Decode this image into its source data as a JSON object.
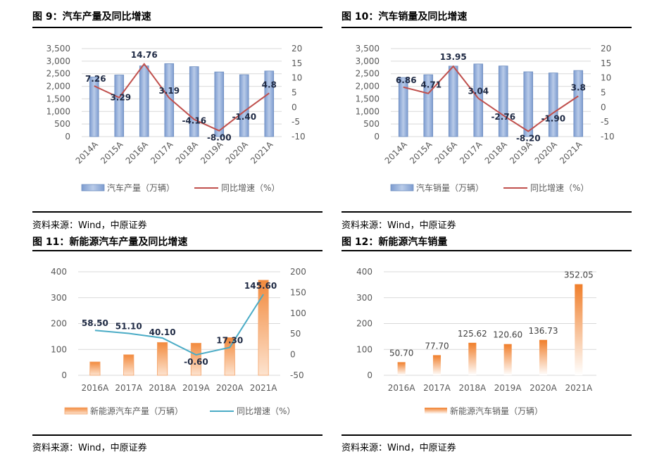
{
  "source_text": "资料来源：Wind，中原证券",
  "colors": {
    "bar_blue": "#9db6dc",
    "bar_blue_edge": "#6f8fc0",
    "line_red": "#c0504d",
    "bar_orange": "#f4a46a",
    "line_teal": "#4bacc6",
    "axis_text": "#595959"
  },
  "panels": [
    {
      "title": "图 9：汽车产量及同比增速",
      "chart_data": {
        "type": "bar+line",
        "categories": [
          "2014A",
          "2015A",
          "2016A",
          "2017A",
          "2018A",
          "2019A",
          "2020A",
          "2021A"
        ],
        "series": [
          {
            "name": "汽车产量（万辆）",
            "type": "bar",
            "axis": "left",
            "values": [
              2372,
              2450,
              2812,
              2902,
              2781,
              2572,
              2462,
              2608
            ]
          },
          {
            "name": "同比增速（%）",
            "type": "line",
            "axis": "right",
            "values": [
              7.26,
              3.29,
              14.76,
              3.19,
              -4.16,
              -8.0,
              -1.4,
              4.8
            ],
            "labels": [
              "7.26",
              "3.29",
              "14.76",
              "3.19",
              "-4.16",
              "-8.00",
              "-1.40",
              "4.8"
            ]
          }
        ],
        "yticks_left": [
          "0",
          "500",
          "1,000",
          "1,500",
          "2,000",
          "2,500",
          "3,000",
          "3,500"
        ],
        "ylim_left": [
          0,
          3500
        ],
        "yticks_right": [
          "-10",
          "-5",
          "0",
          "5",
          "10",
          "15",
          "20"
        ],
        "ylim_right": [
          -10,
          20
        ],
        "x_rotated": true,
        "grid": true,
        "legend": "bottom"
      }
    },
    {
      "title": "图 10：汽车销量及同比增速",
      "chart_data": {
        "type": "bar+line",
        "categories": [
          "2014A",
          "2015A",
          "2016A",
          "2017A",
          "2018A",
          "2019A",
          "2020A",
          "2021A"
        ],
        "series": [
          {
            "name": "汽车销量（万辆）",
            "type": "bar",
            "axis": "left",
            "values": [
              2349,
              2460,
              2803,
              2888,
              2808,
              2577,
              2531,
              2628
            ]
          },
          {
            "name": "同比增速（%）",
            "type": "line",
            "axis": "right",
            "values": [
              6.86,
              4.71,
              13.95,
              3.04,
              -2.76,
              -8.2,
              -1.9,
              3.8
            ],
            "labels": [
              "6.86",
              "4.71",
              "13.95",
              "3.04",
              "-2.76",
              "-8.20",
              "-1.90",
              "3.8"
            ]
          }
        ],
        "yticks_left": [
          "0",
          "500",
          "1,000",
          "1,500",
          "2,000",
          "2,500",
          "3,000",
          "3,500"
        ],
        "ylim_left": [
          0,
          3500
        ],
        "yticks_right": [
          "-10",
          "-5",
          "0",
          "5",
          "10",
          "15",
          "20"
        ],
        "ylim_right": [
          -10,
          20
        ],
        "x_rotated": true,
        "grid": true,
        "legend": "bottom"
      }
    },
    {
      "title": "图 11：新能源汽车产量及同比增速",
      "chart_data": {
        "type": "bar+line",
        "categories": [
          "2016A",
          "2017A",
          "2018A",
          "2019A",
          "2020A",
          "2021A"
        ],
        "series": [
          {
            "name": "新能源汽车产量（万辆）",
            "type": "bar",
            "axis": "left",
            "values": [
              51.7,
              79.4,
              127.0,
              124.2,
              145.6,
              367.7
            ]
          },
          {
            "name": "同比增速（%）",
            "type": "line",
            "axis": "right",
            "values": [
              58.5,
              51.1,
              40.1,
              -0.6,
              17.3,
              145.6
            ],
            "labels": [
              "58.50",
              "51.10",
              "40.10",
              "-0.60",
              "17.30",
              "145.60"
            ]
          }
        ],
        "yticks_left": [
          "0",
          "100",
          "200",
          "300",
          "400"
        ],
        "ylim_left": [
          0,
          400
        ],
        "yticks_right": [
          "-50",
          "0",
          "50",
          "100",
          "150",
          "200"
        ],
        "ylim_right": [
          -50,
          200
        ],
        "x_rotated": false,
        "grid": true,
        "legend": "bottom"
      }
    },
    {
      "title": "图 12：新能源汽车销量",
      "chart_data": {
        "type": "bar",
        "categories": [
          "2016A",
          "2017A",
          "2018A",
          "2019A",
          "2020A",
          "2021A"
        ],
        "series": [
          {
            "name": "新能源汽车销量（万辆）",
            "type": "bar",
            "axis": "left",
            "values": [
              50.7,
              77.7,
              125.62,
              120.6,
              136.73,
              352.05
            ],
            "labels": [
              "50.70",
              "77.70",
              "125.62",
              "120.60",
              "136.73",
              "352.05"
            ]
          }
        ],
        "yticks_left": [
          "0",
          "100",
          "200",
          "300",
          "400"
        ],
        "ylim_left": [
          0,
          400
        ],
        "x_rotated": false,
        "grid": true,
        "legend": "bottom"
      }
    }
  ]
}
